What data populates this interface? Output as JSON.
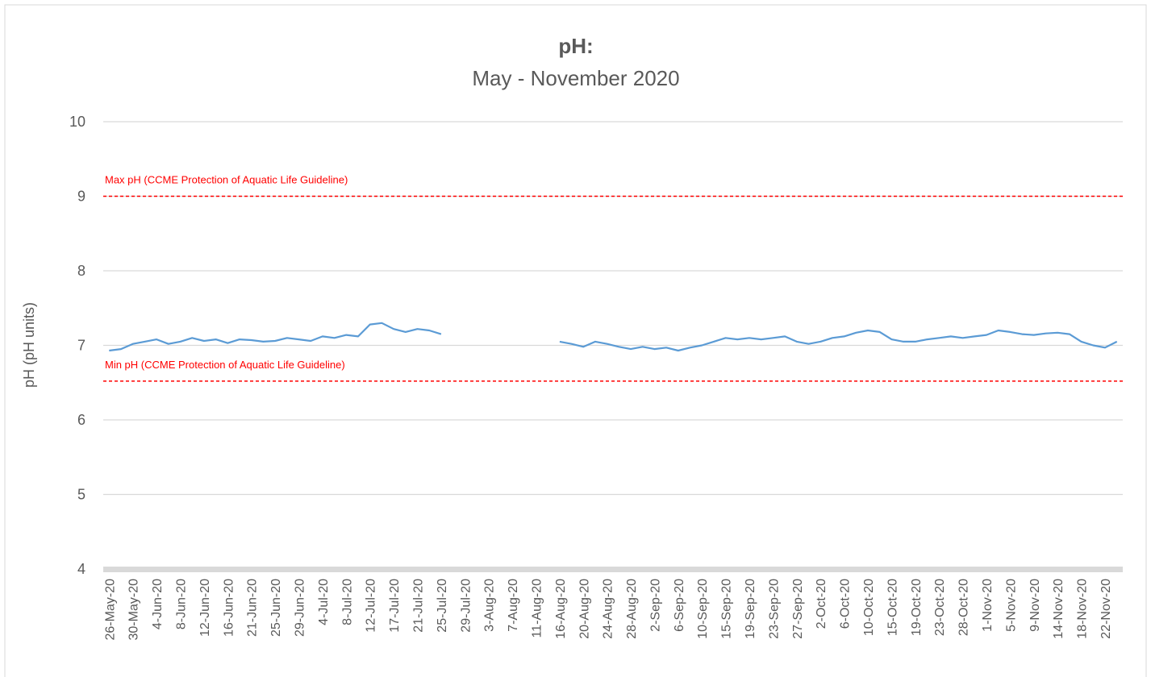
{
  "chart_data": {
    "type": "line",
    "title": "pH:",
    "subtitle": "May - November 2020",
    "y_label": "pH (pH units)",
    "ylim": [
      4,
      10
    ],
    "yticks": [
      4,
      5,
      6,
      7,
      8,
      9,
      10
    ],
    "grid": true,
    "categories": [
      "26-May-20",
      null,
      "30-May-20",
      null,
      "4-Jun-20",
      null,
      "8-Jun-20",
      null,
      "12-Jun-20",
      null,
      "16-Jun-20",
      null,
      "21-Jun-20",
      null,
      "25-Jun-20",
      null,
      "29-Jun-20",
      null,
      "4-Jul-20",
      null,
      "8-Jul-20",
      null,
      "12-Jul-20",
      null,
      "17-Jul-20",
      null,
      "21-Jul-20",
      null,
      "25-Jul-20",
      null,
      "29-Jul-20",
      null,
      "3-Aug-20",
      null,
      "7-Aug-20",
      null,
      "11-Aug-20",
      null,
      "16-Aug-20",
      null,
      "20-Aug-20",
      null,
      "24-Aug-20",
      null,
      "28-Aug-20",
      null,
      "2-Sep-20",
      null,
      "6-Sep-20",
      null,
      "10-Sep-20",
      null,
      "15-Sep-20",
      null,
      "19-Sep-20",
      null,
      "23-Sep-20",
      null,
      "27-Sep-20",
      null,
      "2-Oct-20",
      null,
      "6-Oct-20",
      null,
      "10-Oct-20",
      null,
      "15-Oct-20",
      null,
      "19-Oct-20",
      null,
      "23-Oct-20",
      null,
      "28-Oct-20",
      null,
      "1-Nov-20",
      null,
      "5-Nov-20",
      null,
      "9-Nov-20",
      null,
      "14-Nov-20",
      null,
      "18-Nov-20",
      null,
      "22-Nov-20",
      null
    ],
    "series": [
      {
        "name": "pH",
        "color": "#5b9bd5",
        "values": [
          6.93,
          6.95,
          7.02,
          7.05,
          7.08,
          7.02,
          7.05,
          7.1,
          7.06,
          7.08,
          7.03,
          7.08,
          7.07,
          7.05,
          7.06,
          7.1,
          7.08,
          7.06,
          7.12,
          7.1,
          7.14,
          7.12,
          7.28,
          7.3,
          7.22,
          7.18,
          7.22,
          7.2,
          7.15,
          null,
          null,
          null,
          null,
          null,
          null,
          null,
          null,
          null,
          7.05,
          7.02,
          6.98,
          7.05,
          7.02,
          6.98,
          6.95,
          6.98,
          6.95,
          6.97,
          6.93,
          6.97,
          7.0,
          7.05,
          7.1,
          7.08,
          7.1,
          7.08,
          7.1,
          7.12,
          7.05,
          7.02,
          7.05,
          7.1,
          7.12,
          7.17,
          7.2,
          7.18,
          7.08,
          7.05,
          7.05,
          7.08,
          7.1,
          7.12,
          7.1,
          7.12,
          7.14,
          7.2,
          7.18,
          7.15,
          7.14,
          7.16,
          7.17,
          7.15,
          7.05,
          7.0,
          6.97,
          7.05
        ]
      }
    ],
    "reference_lines": [
      {
        "label": "Max pH (CCME Protection of Aquatic Life Guideline)",
        "value": 9,
        "color": "#ff0000"
      },
      {
        "label": "Min pH (CCME Protection of Aquatic Life Guideline)",
        "value": 6.52,
        "color": "#ff0000"
      }
    ]
  }
}
